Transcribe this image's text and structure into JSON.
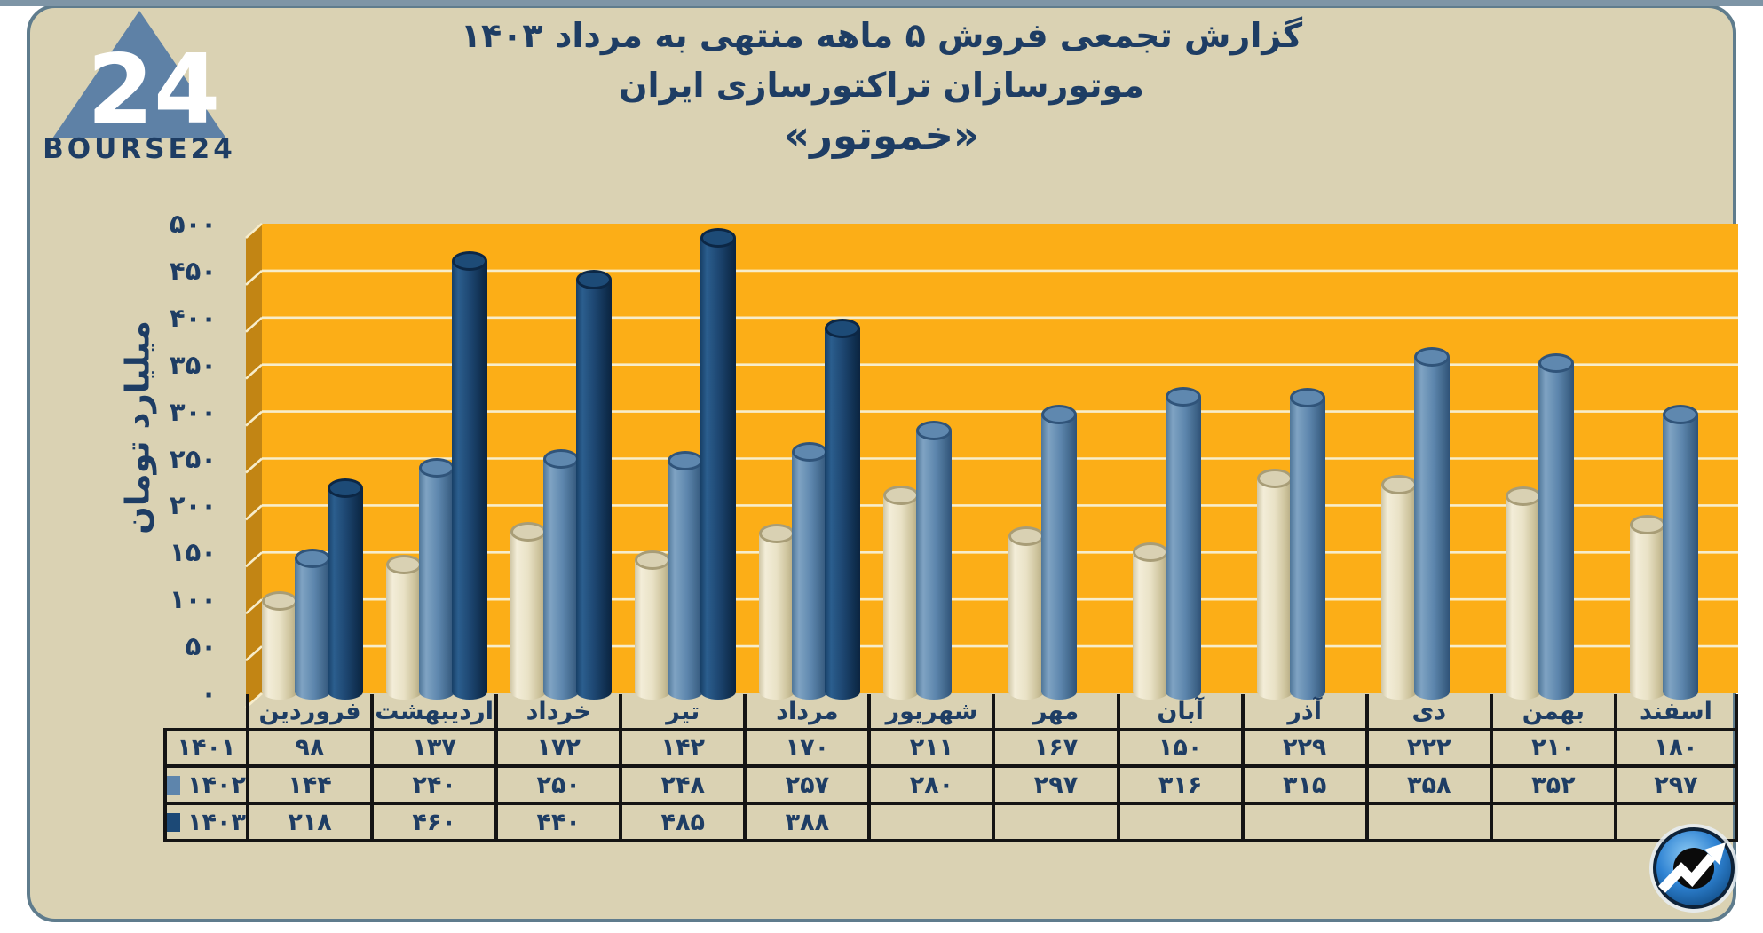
{
  "frame": {
    "page_bg": "#FFFFFF",
    "top_strip_color": "#7E95A6",
    "card_bg": "#DAD2B3",
    "card_border_color": "#5F7C8D"
  },
  "logo": {
    "wordmark": "BOURSE24",
    "triangle_number": "24",
    "triangle_color": "#5E81A6",
    "text_color": "#1E3D64"
  },
  "title": {
    "line1": "گزارش تجمعی فروش ۵ ماهه منتهی به مرداد ۱۴۰۳",
    "line2": "موتورسازان تراکتورسازی ایران",
    "line3": "«خموتور»",
    "color": "#1E3D64"
  },
  "chart_data": {
    "type": "bar",
    "title": "گزارش تجمعی فروش ۵ ماهه منتهی به مرداد ۱۴۰۳ موتورسازان تراکتورسازی ایران «خموتور»",
    "ylabel": "میلیارد تومان",
    "ylim": [
      0,
      500
    ],
    "ytick_step": 50,
    "grid": true,
    "plot_bg": "#FCAE17",
    "wall_color": "#C28514",
    "gridline_color": "#F7EDCB",
    "legend_position": "table-left-column",
    "categories": [
      "فروردین",
      "اردیبهشت",
      "خرداد",
      "تیر",
      "مرداد",
      "شهریور",
      "مهر",
      "آبان",
      "آذر",
      "دی",
      "بهمن",
      "اسفند"
    ],
    "series": [
      {
        "name": "۱۴۰۱",
        "swatch": null,
        "bar_color": "#E9E2C6",
        "values": [
          98,
          137,
          172,
          142,
          170,
          211,
          167,
          150,
          229,
          222,
          210,
          180
        ]
      },
      {
        "name": "۱۴۰۲",
        "swatch": "#5E85AC",
        "bar_color": "#5D86AD",
        "values": [
          144,
          240,
          250,
          248,
          257,
          280,
          297,
          316,
          315,
          358,
          352,
          297
        ]
      },
      {
        "name": "۱۴۰۳",
        "swatch": "#1C4976",
        "bar_color": "#1C436C",
        "values": [
          218,
          460,
          440,
          485,
          388,
          null,
          null,
          null,
          null,
          null,
          null,
          null
        ]
      }
    ]
  },
  "watermark": {
    "icon": "bourse24-circle-trend-arrow"
  }
}
